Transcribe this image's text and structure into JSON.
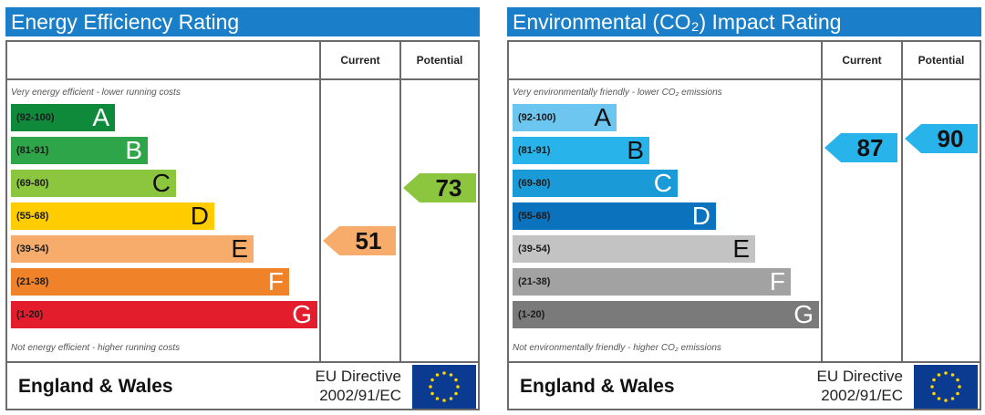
{
  "chart_data": [
    {
      "type": "energy-rating-chart",
      "title": "Energy Efficiency Rating",
      "column_headers": [
        "Current",
        "Potential"
      ],
      "top_caption": "Very energy efficient - lower running costs",
      "bottom_caption": "Not energy efficient - higher running costs",
      "bands": [
        {
          "range": "(92-100)",
          "letter": "A",
          "color": "#0f8a3b"
        },
        {
          "range": "(81-91)",
          "letter": "B",
          "color": "#2ea548"
        },
        {
          "range": "(69-80)",
          "letter": "C",
          "color": "#8cc63f"
        },
        {
          "range": "(55-68)",
          "letter": "D",
          "color": "#ffcc00"
        },
        {
          "range": "(39-54)",
          "letter": "E",
          "color": "#f7ac6b"
        },
        {
          "range": "(21-38)",
          "letter": "F",
          "color": "#f0822a"
        },
        {
          "range": "(1-20)",
          "letter": "G",
          "color": "#e31d2b"
        }
      ],
      "current": {
        "value": 51,
        "color": "#f7ac6b"
      },
      "potential": {
        "value": 73,
        "color": "#8cc63f"
      },
      "footer": {
        "region": "England & Wales",
        "directive_line1": "EU Directive",
        "directive_line2": "2002/91/EC"
      }
    },
    {
      "type": "energy-rating-chart",
      "title": "Environmental (CO₂) Impact Rating",
      "column_headers": [
        "Current",
        "Potential"
      ],
      "top_caption": "Very environmentally friendly - lower CO₂ emissions",
      "bottom_caption": "Not environmentally friendly - higher CO₂ emissions",
      "bands": [
        {
          "range": "(92-100)",
          "letter": "A",
          "color": "#6cc6ef"
        },
        {
          "range": "(81-91)",
          "letter": "B",
          "color": "#28b4ea"
        },
        {
          "range": "(69-80)",
          "letter": "C",
          "color": "#1b9ad8"
        },
        {
          "range": "(55-68)",
          "letter": "D",
          "color": "#0b72bd"
        },
        {
          "range": "(39-54)",
          "letter": "E",
          "color": "#c3c3c3"
        },
        {
          "range": "(21-38)",
          "letter": "F",
          "color": "#a2a2a2"
        },
        {
          "range": "(1-20)",
          "letter": "G",
          "color": "#7a7a7a"
        }
      ],
      "current": {
        "value": 87,
        "color": "#28b4ea"
      },
      "potential": {
        "value": 90,
        "color": "#28b4ea"
      },
      "footer": {
        "region": "England & Wales",
        "directive_line1": "EU Directive",
        "directive_line2": "2002/91/EC"
      }
    }
  ]
}
